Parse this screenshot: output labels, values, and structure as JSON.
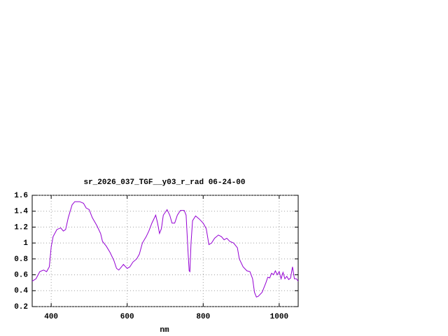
{
  "chart_data": {
    "type": "line",
    "title": "sr_2026_037_TGF__y03_r_rad 06-24-00",
    "xlabel": "nm",
    "color": "#9400d3",
    "grid": true,
    "xlim": [
      350,
      1050
    ],
    "xticks": [
      400,
      600,
      800,
      1000
    ],
    "ylim": [
      0.2,
      1.6
    ],
    "yticks": [
      0.2,
      0.4,
      0.6,
      0.8,
      1,
      1.2,
      1.4,
      1.6
    ],
    "x": [
      350,
      360,
      370,
      380,
      388,
      395,
      400,
      405,
      415,
      425,
      432,
      438,
      445,
      455,
      462,
      475,
      485,
      492,
      500,
      508,
      520,
      530,
      535,
      545,
      555,
      565,
      572,
      578,
      585,
      590,
      600,
      607,
      615,
      625,
      632,
      640,
      650,
      657,
      665,
      675,
      680,
      685,
      690,
      695,
      705,
      712,
      718,
      725,
      732,
      740,
      750,
      755,
      760,
      763,
      765,
      768,
      772,
      780,
      790,
      800,
      808,
      815,
      822,
      830,
      840,
      848,
      855,
      862,
      870,
      880,
      890,
      895,
      905,
      915,
      923,
      930,
      935,
      940,
      945,
      955,
      965,
      970,
      975,
      980,
      985,
      990,
      995,
      1000,
      1005,
      1010,
      1015,
      1020,
      1025,
      1030,
      1035,
      1040,
      1045,
      1050
    ],
    "values": [
      0.52,
      0.55,
      0.64,
      0.66,
      0.64,
      0.7,
      0.95,
      1.08,
      1.17,
      1.19,
      1.15,
      1.17,
      1.32,
      1.48,
      1.52,
      1.52,
      1.5,
      1.44,
      1.42,
      1.32,
      1.22,
      1.12,
      1.02,
      0.96,
      0.88,
      0.78,
      0.68,
      0.66,
      0.7,
      0.73,
      0.68,
      0.7,
      0.76,
      0.8,
      0.86,
      1.0,
      1.08,
      1.15,
      1.25,
      1.35,
      1.25,
      1.12,
      1.18,
      1.35,
      1.42,
      1.35,
      1.25,
      1.25,
      1.35,
      1.41,
      1.41,
      1.35,
      0.9,
      0.65,
      0.64,
      1.0,
      1.28,
      1.34,
      1.3,
      1.25,
      1.18,
      0.98,
      1.0,
      1.06,
      1.1,
      1.08,
      1.04,
      1.06,
      1.02,
      1.0,
      0.94,
      0.8,
      0.7,
      0.65,
      0.64,
      0.55,
      0.38,
      0.32,
      0.33,
      0.38,
      0.5,
      0.57,
      0.56,
      0.62,
      0.6,
      0.65,
      0.6,
      0.64,
      0.55,
      0.63,
      0.55,
      0.58,
      0.54,
      0.56,
      0.7,
      0.55,
      0.55,
      0.52
    ]
  }
}
